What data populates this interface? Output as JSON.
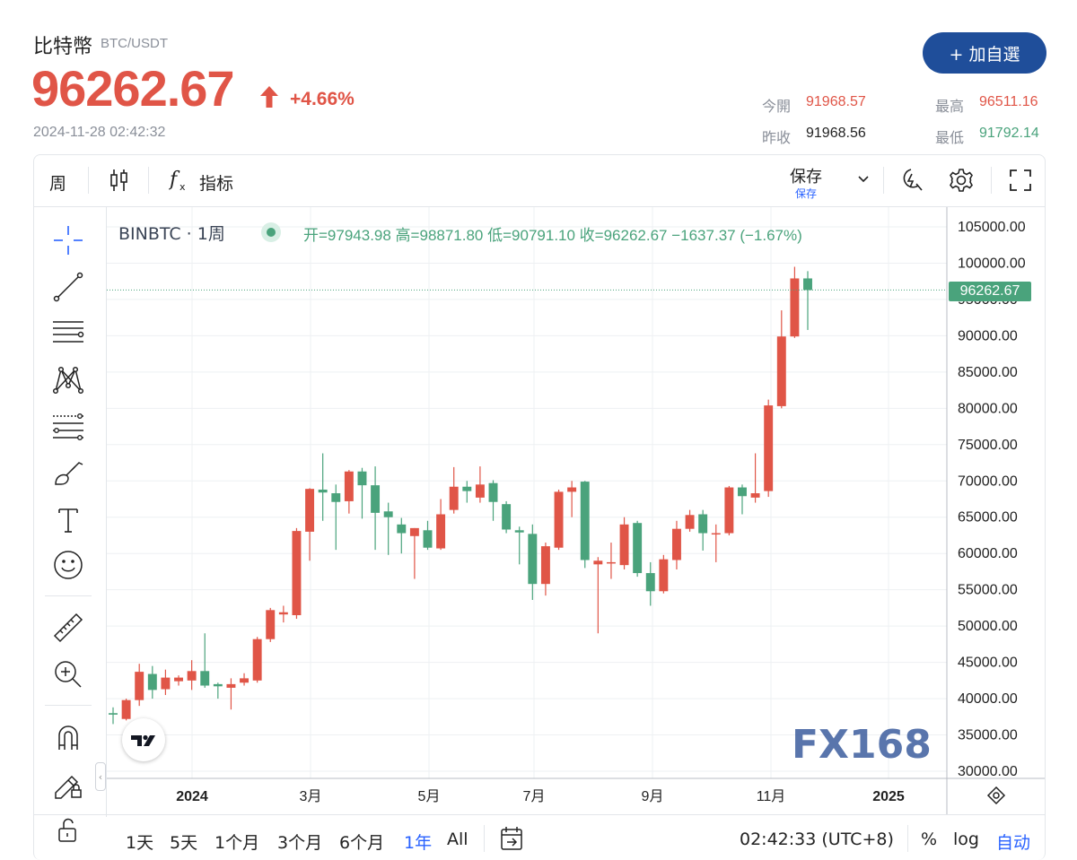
{
  "header": {
    "title": "比特幣",
    "pair": "BTC/USDT",
    "price": "96262.67",
    "change_pct": "+4.66%",
    "timestamp": "2024-11-28 02:42:32",
    "watchlist_label": "+ 加自選"
  },
  "stats": {
    "open_label": "今開",
    "open_value": "91968.57",
    "high_label": "最高",
    "high_value": "96511.16",
    "prev_close_label": "昨收",
    "prev_close_value": "91968.56",
    "low_label": "最低",
    "low_value": "91792.14"
  },
  "toolbar": {
    "interval": "周",
    "indicators_label": "指标",
    "save_label": "保存",
    "save_sub_label": "保存"
  },
  "legend": {
    "symbol": "BINBTC · 1周",
    "values": "开=97943.98 高=98871.80 低=90791.10 收=96262.67 −1637.37 (−1.67%)"
  },
  "price_tag": "96262.67",
  "bottombar": {
    "ranges": [
      "1天",
      "5天",
      "1个月",
      "3个月",
      "6个月",
      "1年",
      "All"
    ],
    "active_range": "1年",
    "clock": "02:42:33 (UTC+8)",
    "percent_label": "%",
    "log_label": "log",
    "auto_label": "自动"
  },
  "watermark": "FX168",
  "colors": {
    "up": "#e05547",
    "down": "#4aa37c",
    "accent": "#1f4e9a",
    "active": "#2962ff"
  },
  "chart_data": {
    "type": "candlestick",
    "y_ticks": [
      "105000.00",
      "100000.00",
      "95000.00",
      "90000.00",
      "85000.00",
      "80000.00",
      "75000.00",
      "70000.00",
      "65000.00",
      "60000.00",
      "55000.00",
      "50000.00",
      "45000.00",
      "40000.00",
      "35000.00",
      "30000.00"
    ],
    "x_ticks": [
      "2024",
      "3月",
      "5月",
      "7月",
      "9月",
      "11月",
      "2025"
    ],
    "ylim": [
      30000,
      105000
    ],
    "grid": true,
    "candles": [
      {
        "o": 38000,
        "h": 38800,
        "l": 36500,
        "c": 37800
      },
      {
        "o": 37200,
        "h": 40000,
        "l": 37000,
        "c": 39800
      },
      {
        "o": 39800,
        "h": 44800,
        "l": 39000,
        "c": 43700
      },
      {
        "o": 43400,
        "h": 44500,
        "l": 40000,
        "c": 41200
      },
      {
        "o": 41300,
        "h": 44000,
        "l": 40500,
        "c": 42900
      },
      {
        "o": 42400,
        "h": 43200,
        "l": 41800,
        "c": 42900
      },
      {
        "o": 42500,
        "h": 45300,
        "l": 41200,
        "c": 43800
      },
      {
        "o": 43800,
        "h": 49000,
        "l": 41500,
        "c": 41800
      },
      {
        "o": 42000,
        "h": 42200,
        "l": 40000,
        "c": 41700
      },
      {
        "o": 41500,
        "h": 42800,
        "l": 38500,
        "c": 42000
      },
      {
        "o": 42200,
        "h": 43500,
        "l": 41800,
        "c": 42800
      },
      {
        "o": 42500,
        "h": 48500,
        "l": 42200,
        "c": 48200
      },
      {
        "o": 48200,
        "h": 52500,
        "l": 47800,
        "c": 52200
      },
      {
        "o": 51600,
        "h": 52800,
        "l": 50500,
        "c": 51900
      },
      {
        "o": 51500,
        "h": 63500,
        "l": 51000,
        "c": 63100
      },
      {
        "o": 63000,
        "h": 69000,
        "l": 59000,
        "c": 68900
      },
      {
        "o": 68800,
        "h": 73800,
        "l": 64500,
        "c": 68400
      },
      {
        "o": 68300,
        "h": 69500,
        "l": 60500,
        "c": 67100
      },
      {
        "o": 67200,
        "h": 71500,
        "l": 65500,
        "c": 71300
      },
      {
        "o": 71300,
        "h": 71800,
        "l": 64800,
        "c": 69400
      },
      {
        "o": 69400,
        "h": 72000,
        "l": 60500,
        "c": 65600
      },
      {
        "o": 65800,
        "h": 67000,
        "l": 59800,
        "c": 65000
      },
      {
        "o": 64000,
        "h": 64900,
        "l": 60000,
        "c": 62800
      },
      {
        "o": 62400,
        "h": 63500,
        "l": 56500,
        "c": 63500
      },
      {
        "o": 63200,
        "h": 64500,
        "l": 60500,
        "c": 60800
      },
      {
        "o": 60700,
        "h": 67500,
        "l": 60500,
        "c": 65400
      },
      {
        "o": 66000,
        "h": 71900,
        "l": 65500,
        "c": 69200
      },
      {
        "o": 69200,
        "h": 70000,
        "l": 67000,
        "c": 68600
      },
      {
        "o": 67700,
        "h": 72000,
        "l": 67000,
        "c": 69500
      },
      {
        "o": 69700,
        "h": 70100,
        "l": 64500,
        "c": 67100
      },
      {
        "o": 66800,
        "h": 67200,
        "l": 62800,
        "c": 63300
      },
      {
        "o": 63200,
        "h": 63700,
        "l": 58500,
        "c": 62900
      },
      {
        "o": 62700,
        "h": 64000,
        "l": 53600,
        "c": 55800
      },
      {
        "o": 55800,
        "h": 61500,
        "l": 54200,
        "c": 61000
      },
      {
        "o": 60800,
        "h": 68800,
        "l": 60500,
        "c": 68500
      },
      {
        "o": 68500,
        "h": 70000,
        "l": 65000,
        "c": 69100
      },
      {
        "o": 69900,
        "h": 70000,
        "l": 58000,
        "c": 59100
      },
      {
        "o": 58500,
        "h": 59500,
        "l": 49000,
        "c": 59000
      },
      {
        "o": 58800,
        "h": 61500,
        "l": 56500,
        "c": 58800
      },
      {
        "o": 58400,
        "h": 65000,
        "l": 57800,
        "c": 64000
      },
      {
        "o": 64200,
        "h": 64500,
        "l": 56800,
        "c": 57300
      },
      {
        "o": 57300,
        "h": 58800,
        "l": 52800,
        "c": 54800
      },
      {
        "o": 54800,
        "h": 59800,
        "l": 54500,
        "c": 59200
      },
      {
        "o": 59100,
        "h": 64500,
        "l": 57800,
        "c": 63400
      },
      {
        "o": 63400,
        "h": 66000,
        "l": 63000,
        "c": 65300
      },
      {
        "o": 65400,
        "h": 66000,
        "l": 60400,
        "c": 62800
      },
      {
        "o": 62800,
        "h": 64000,
        "l": 58800,
        "c": 62800
      },
      {
        "o": 62800,
        "h": 69300,
        "l": 62500,
        "c": 69100
      },
      {
        "o": 69100,
        "h": 69500,
        "l": 65400,
        "c": 67900
      },
      {
        "o": 67700,
        "h": 73800,
        "l": 67000,
        "c": 68300
      },
      {
        "o": 68600,
        "h": 81200,
        "l": 67800,
        "c": 80400
      },
      {
        "o": 80300,
        "h": 93500,
        "l": 80000,
        "c": 89900
      },
      {
        "o": 89900,
        "h": 99500,
        "l": 89700,
        "c": 97900
      },
      {
        "o": 97900,
        "h": 98900,
        "l": 90800,
        "c": 96300
      }
    ]
  }
}
